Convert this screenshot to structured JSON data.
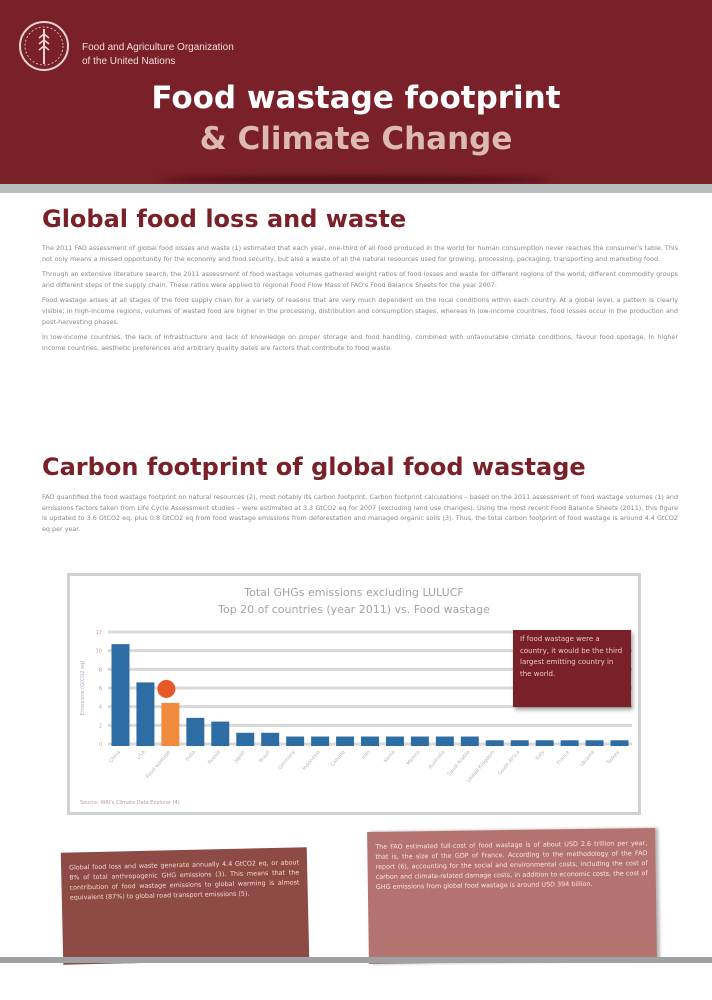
{
  "header": {
    "org_line1": "Food and Agriculture Organization",
    "org_line2": "of the United Nations",
    "title_line1": "Food wastage footprint",
    "title_line2": "& Climate Change",
    "logo_name": "fao-logo"
  },
  "section1": {
    "heading": "Global food loss and waste",
    "paragraphs": [
      "The 2011 FAO assessment of global food losses and waste (1) estimated that each year, one-third of all food produced in the world for human consumption never reaches the consumer's table. This not only means a missed opportunity for the economy and food security, but also a waste of all the natural resources used for growing, processing, packaging, transporting and marketing food.",
      "Through an extensive literature search, the 2011 assessment of food wastage volumes gathered weight ratios of food losses and waste for different regions of the world, different commodity groups and different steps of the supply chain. These ratios were applied to regional Food Flow Mass of FAO's Food Balance Sheets for the year 2007.",
      "Food wastage arises at all stages of the food supply chain for a variety of reasons that are very much dependent on the local conditions within each country. At a global level, a pattern is clearly visible; in high-income regions, volumes of wasted food are higher in the processing, distribution and consumption stages, whereas in low-income countries, food losses occur in the production and post-harvesting phases.",
      "In low-income countries, the lack of infrastructure and lack of knowledge on proper storage and food handling, combined with unfavourable climate conditions, favour food spoilage. In higher income countries, aesthetic preferences and arbitrary quality dates are factors that contribute to food waste."
    ]
  },
  "section2": {
    "heading": "Carbon footprint of global food wastage",
    "paragraphs": [
      "FAO quantified the food wastage footprint on natural resources (2), most notably its carbon footprint. Carbon footprint calculations – based on the 2011 assessment of food wastage volumes (1) and emissions factors taken from Life Cycle Assessment studies – were estimated at 3.3 GtCO2 eq for 2007 (excluding land use changes). Using the most recent Food Balance Sheets (2011), this figure is updated to 3.6 GtCO2 eq, plus 0.8 GtCO2 eq from food wastage emissions from deforestation and managed organic soils (3). Thus, the total carbon footprint of food wastage is around 4.4 GtCO2 eq per year."
    ]
  },
  "chart_data": {
    "type": "bar",
    "title": "Total GHGs emissions excluding LULUCF",
    "subtitle": "Top 20 of countries (year 2011) vs. Food wastage",
    "ylabel": "Emissions (GtCO2 eq)",
    "ylim": [
      0,
      12
    ],
    "yticks": [
      0,
      2,
      4,
      6,
      8,
      10,
      12
    ],
    "grid": true,
    "categories": [
      "China",
      "USA",
      "Food wastage",
      "India",
      "Russia",
      "Japan",
      "Brazil",
      "Germany",
      "Indonesia",
      "Canada",
      "Iran",
      "Korea",
      "Mexico",
      "Australia",
      "Saudi Arabia",
      "United Kingdom",
      "South Africa",
      "Italy",
      "France",
      "Ukraine",
      "Turkey"
    ],
    "values": [
      10.7,
      6.6,
      4.4,
      2.8,
      2.4,
      1.2,
      1.2,
      0.8,
      0.8,
      0.8,
      0.8,
      0.8,
      0.8,
      0.8,
      0.8,
      0.4,
      0.4,
      0.4,
      0.4,
      0.4,
      0.4
    ],
    "highlight_index": 2,
    "colors": {
      "bar": "#2e6da4",
      "highlight": "#f08a3c",
      "grid": "#d9d9d9"
    },
    "callout": "If food wastage were a country, it would be the third largest emitting country in the world.",
    "source": "Source: WRI's Climate Data Explorer (4)"
  },
  "box_left": {
    "text": "Global food loss and waste generate annually 4.4 GtCO2 eq, or about 8% of total anthropogenic GHG emissions (3). This means that the contribution of food wastage emissions to global warming is almost equivalent (87%) to global road transport emissions (5)."
  },
  "box_right": {
    "text": "The FAO estimated full-cost of food wastage is of about USD 2.6 trillion per year, that is, the size of the GDP of France. According to the methodology of the FAO report (6), accounting for the social and environmental costs, including the cost of carbon and climate-related damage costs, in addition to economic costs, the cost of GHG emissions from global food wastage is around USD 394 billion."
  },
  "colors": {
    "brand": "#7a2029",
    "band": "#b9bdbd"
  }
}
